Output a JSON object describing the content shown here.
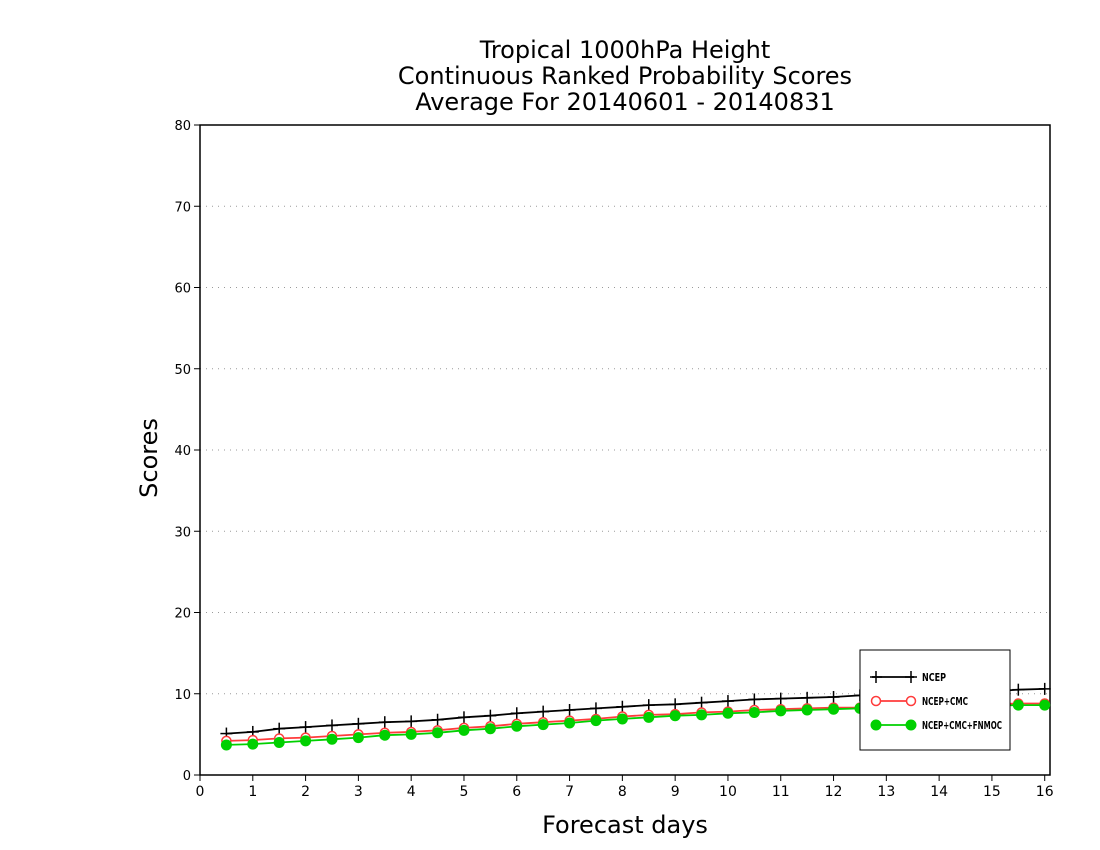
{
  "chart_data": {
    "type": "line",
    "title_lines": [
      "Tropical 1000hPa Height",
      "Continuous Ranked Probability Scores",
      "Average For 20140601 - 20140831"
    ],
    "xlabel": "Forecast days",
    "ylabel": "Scores",
    "xlim": [
      0,
      16.1
    ],
    "ylim": [
      0,
      80
    ],
    "xticks": [
      0,
      1,
      2,
      3,
      4,
      5,
      6,
      7,
      8,
      9,
      10,
      11,
      12,
      13,
      14,
      15,
      16
    ],
    "yticks": [
      0,
      10,
      20,
      30,
      40,
      50,
      60,
      70,
      80
    ],
    "grid": "horizontal dotted",
    "legend_position": "bottom-right",
    "x": [
      0.5,
      1,
      1.5,
      2,
      2.5,
      3,
      3.5,
      4,
      4.5,
      5,
      5.5,
      6,
      6.5,
      7,
      7.5,
      8,
      8.5,
      9,
      9.5,
      10,
      10.5,
      11,
      11.5,
      12,
      12.5,
      13,
      13.5,
      14,
      14.5,
      15,
      15.5,
      16
    ],
    "series": [
      {
        "name": "NCEP",
        "color": "#000000",
        "marker": "plus",
        "values": [
          5.1,
          5.3,
          5.7,
          5.9,
          6.1,
          6.3,
          6.5,
          6.6,
          6.8,
          7.1,
          7.3,
          7.6,
          7.8,
          8.0,
          8.2,
          8.4,
          8.6,
          8.7,
          8.9,
          9.1,
          9.3,
          9.4,
          9.5,
          9.6,
          9.8,
          9.9,
          10.0,
          10.1,
          10.2,
          10.3,
          10.5,
          10.6
        ]
      },
      {
        "name": "NCEP+CMC",
        "color": "#ff3b3b",
        "marker": "open-circle",
        "values": [
          4.2,
          4.3,
          4.5,
          4.6,
          4.8,
          5.0,
          5.2,
          5.3,
          5.5,
          5.8,
          6.0,
          6.3,
          6.5,
          6.7,
          6.9,
          7.2,
          7.4,
          7.5,
          7.7,
          7.8,
          8.0,
          8.1,
          8.2,
          8.3,
          8.3,
          8.4,
          8.5,
          8.6,
          8.6,
          8.7,
          8.8,
          8.8
        ]
      },
      {
        "name": "NCEP+CMC+FNMOC",
        "color": "#00d000",
        "marker": "filled-circle",
        "values": [
          3.7,
          3.8,
          4.0,
          4.2,
          4.4,
          4.6,
          4.9,
          5.0,
          5.2,
          5.5,
          5.7,
          6.0,
          6.2,
          6.4,
          6.7,
          6.9,
          7.1,
          7.3,
          7.4,
          7.6,
          7.7,
          7.9,
          8.0,
          8.1,
          8.2,
          8.3,
          8.3,
          8.4,
          8.5,
          8.5,
          8.6,
          8.6
        ]
      }
    ]
  }
}
